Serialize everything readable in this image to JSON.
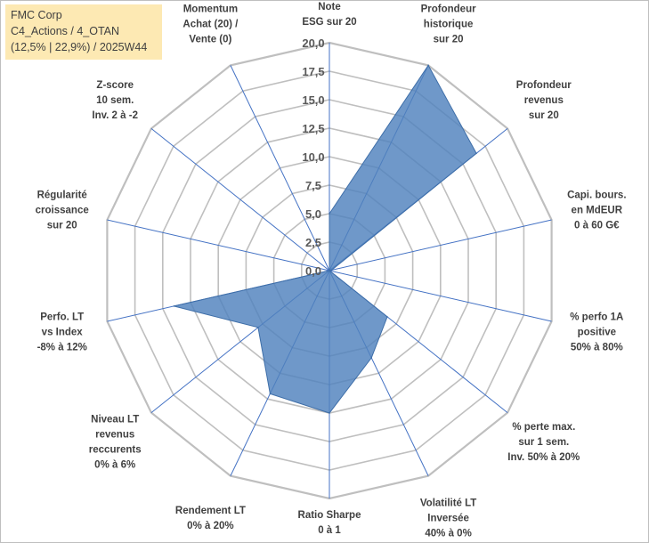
{
  "info": {
    "line1": "FMC Corp",
    "line2": "C4_Actions / 4_OTAN",
    "line3": "(12,5% | 22,9%) / 2025W44"
  },
  "colors": {
    "fill": "#4f81bd",
    "axis": "#4472c4",
    "grid": "#bfbfbf",
    "label_box": "#fde9b3"
  },
  "chart_data": {
    "type": "radar",
    "title": "",
    "rlim": [
      0,
      20
    ],
    "tick_values": [
      0,
      2.5,
      5,
      7.5,
      10,
      12.5,
      15,
      17.5,
      20
    ],
    "tick_labels": [
      "0,0",
      "2,5",
      "5,0",
      "7,5",
      "10,0",
      "12,5",
      "15,0",
      "17,5",
      "20,0"
    ],
    "grid": true,
    "axes": [
      {
        "lines": [
          "Note",
          "ESG sur 20"
        ]
      },
      {
        "lines": [
          "Profondeur",
          "historique",
          "sur 20"
        ]
      },
      {
        "lines": [
          "Profondeur",
          "revenus",
          "sur 20"
        ]
      },
      {
        "lines": [
          "Capi. bours.",
          "en MdEUR",
          "0 à 60 G€"
        ]
      },
      {
        "lines": [
          "% perfo 1A",
          "positive",
          "50% à 80%"
        ]
      },
      {
        "lines": [
          "% perte max.",
          "sur 1 sem.",
          "Inv. 50% à 20%"
        ]
      },
      {
        "lines": [
          "Volatilité LT",
          "Inversée",
          "40% à 0%"
        ]
      },
      {
        "lines": [
          "Ratio Sharpe",
          "0 à 1"
        ]
      },
      {
        "lines": [
          "Rendement LT",
          "0% à 20%"
        ]
      },
      {
        "lines": [
          "Niveau LT",
          "revenus",
          "reccurents",
          "0% à 6%"
        ]
      },
      {
        "lines": [
          "Perfo. LT",
          "vs Index",
          "-8% à 12%"
        ]
      },
      {
        "lines": [
          "Régularité",
          "croissance",
          "sur 20"
        ]
      },
      {
        "lines": [
          "Z-score",
          "10 sem.",
          "Inv. 2 à -2"
        ]
      },
      {
        "lines": [
          "Momentum",
          "Achat (20) /",
          "Vente (0)"
        ]
      }
    ],
    "series": [
      {
        "values": [
          5,
          20,
          16.5,
          0.2,
          0,
          6.5,
          8.5,
          12.5,
          12,
          8,
          14,
          0,
          0,
          0
        ]
      }
    ]
  }
}
